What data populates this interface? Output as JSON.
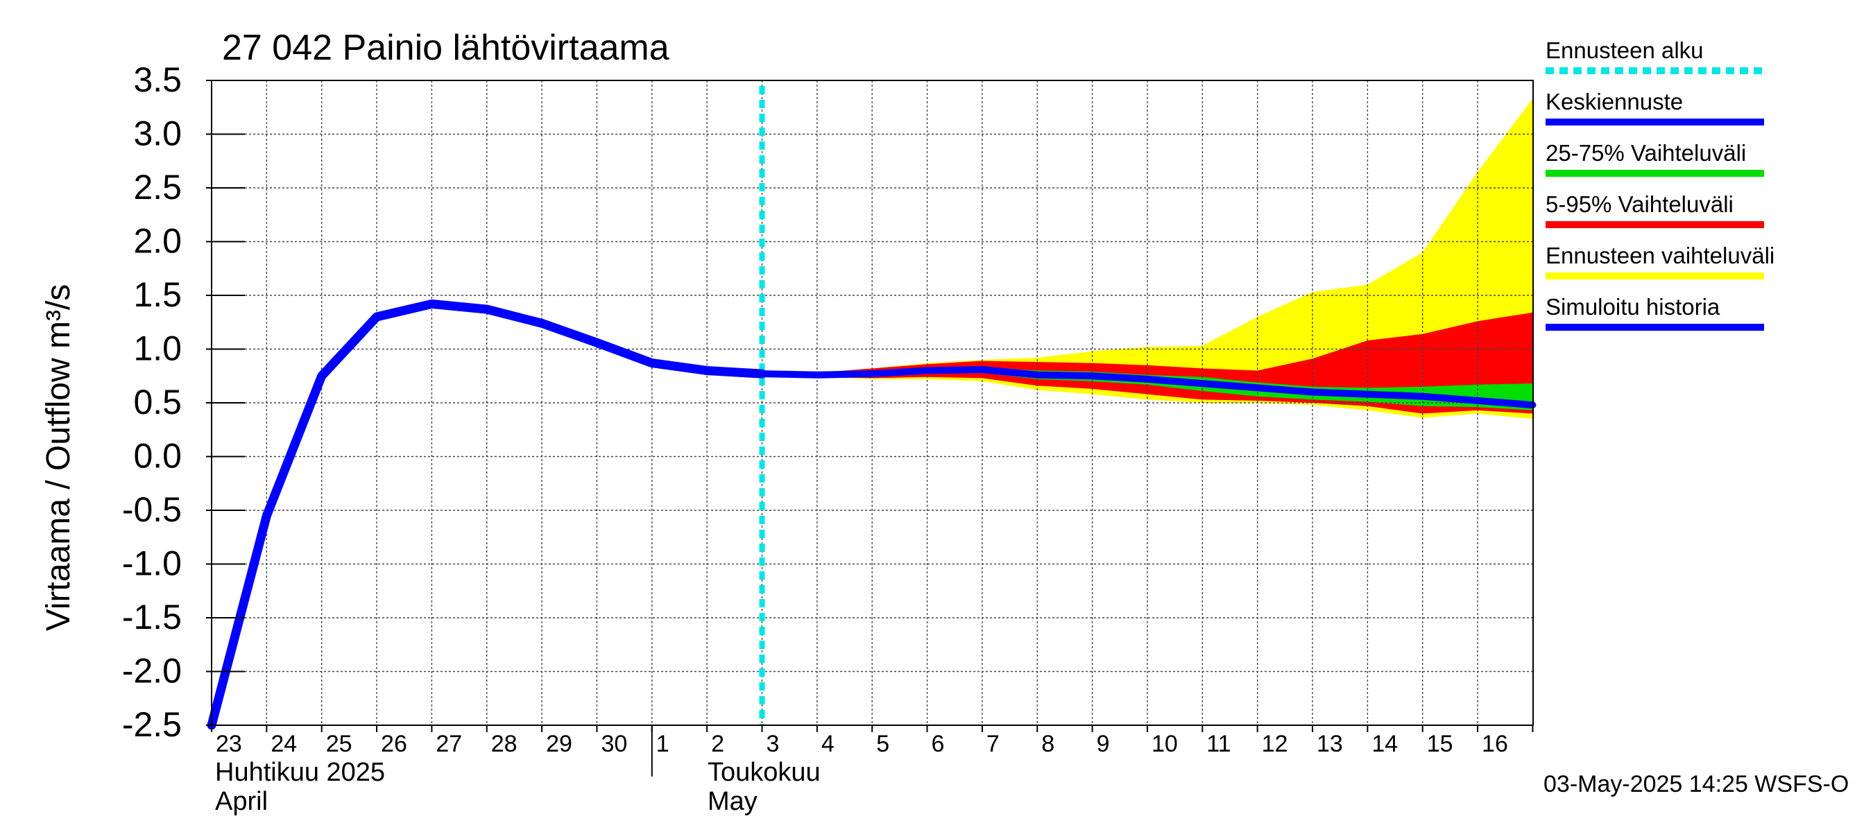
{
  "chart_data": {
    "type": "area",
    "title": "27 042 Painio lähtövirtaama",
    "ylabel": "Virtaama / Outflow    m³/s",
    "ylim": [
      -2.5,
      3.5
    ],
    "yticks": [
      "3.5",
      "3.0",
      "2.5",
      "2.0",
      "1.5",
      "1.0",
      "0.5",
      "0.0",
      "-0.5",
      "-1.0",
      "-1.5",
      "-2.0",
      "-2.5"
    ],
    "x_days": [
      "23",
      "24",
      "25",
      "26",
      "27",
      "28",
      "29",
      "30",
      "1",
      "2",
      "3",
      "4",
      "5",
      "6",
      "7",
      "8",
      "9",
      "10",
      "11",
      "12",
      "13",
      "14",
      "15",
      "16"
    ],
    "x_month_labels": [
      {
        "line1": "Huhtikuu  2025",
        "line2": "April"
      },
      {
        "line1": "Toukokuu",
        "line2": "May"
      }
    ],
    "forecast_start": "2025-05-03",
    "grid": true,
    "legend_position": "right",
    "legend": [
      {
        "label": "Ennusteen alku",
        "color": "#00e5e5",
        "style": "dashed"
      },
      {
        "label": "Keskiennuste",
        "color": "#0000ff",
        "style": "solid"
      },
      {
        "label": "25-75% Vaihteluväli",
        "color": "#00dd00",
        "style": "solid"
      },
      {
        "label": "5-95% Vaihteluväli",
        "color": "#ff0000",
        "style": "solid"
      },
      {
        "label": "Ennusteen vaihteluväli",
        "color": "#ffff00",
        "style": "solid"
      },
      {
        "label": "Simuloitu historia",
        "color": "#0000ff",
        "style": "solid"
      }
    ],
    "series": [
      {
        "name": "Simuloitu historia",
        "x": [
          "2025-04-23",
          "2025-04-24",
          "2025-04-25",
          "2025-04-26",
          "2025-04-27",
          "2025-04-28",
          "2025-04-29",
          "2025-04-30",
          "2025-05-01",
          "2025-05-02",
          "2025-05-03"
        ],
        "values": [
          -2.5,
          -0.55,
          0.75,
          1.3,
          1.42,
          1.37,
          1.24,
          1.06,
          0.87,
          0.8,
          0.77
        ]
      },
      {
        "name": "Keskiennuste",
        "x": [
          "2025-05-03",
          "2025-05-04",
          "2025-05-05",
          "2025-05-06",
          "2025-05-07",
          "2025-05-08",
          "2025-05-09",
          "2025-05-10",
          "2025-05-11",
          "2025-05-12",
          "2025-05-13",
          "2025-05-14",
          "2025-05-15",
          "2025-05-16",
          "2025-05-17"
        ],
        "values": [
          0.77,
          0.76,
          0.77,
          0.8,
          0.81,
          0.76,
          0.75,
          0.72,
          0.68,
          0.64,
          0.6,
          0.58,
          0.56,
          0.52,
          0.48
        ]
      },
      {
        "name": "Ennusteen vaihteluväli",
        "x": [
          "2025-05-03",
          "2025-05-04",
          "2025-05-05",
          "2025-05-06",
          "2025-05-07",
          "2025-05-08",
          "2025-05-09",
          "2025-05-10",
          "2025-05-11",
          "2025-05-12",
          "2025-05-13",
          "2025-05-14",
          "2025-05-15",
          "2025-05-16",
          "2025-05-17"
        ],
        "upper": [
          0.77,
          0.78,
          0.82,
          0.87,
          0.9,
          0.92,
          0.98,
          1.02,
          1.03,
          1.3,
          1.53,
          1.6,
          1.9,
          2.65,
          3.33
        ],
        "lower": [
          0.77,
          0.74,
          0.72,
          0.72,
          0.7,
          0.62,
          0.58,
          0.53,
          0.5,
          0.5,
          0.48,
          0.43,
          0.36,
          0.4,
          0.35
        ]
      },
      {
        "name": "5-95% Vaihteluväli",
        "x": [
          "2025-05-03",
          "2025-05-04",
          "2025-05-05",
          "2025-05-06",
          "2025-05-07",
          "2025-05-08",
          "2025-05-09",
          "2025-05-10",
          "2025-05-11",
          "2025-05-12",
          "2025-05-13",
          "2025-05-14",
          "2025-05-15",
          "2025-05-16",
          "2025-05-17"
        ],
        "upper": [
          0.77,
          0.78,
          0.82,
          0.86,
          0.89,
          0.88,
          0.87,
          0.85,
          0.82,
          0.8,
          0.91,
          1.08,
          1.14,
          1.26,
          1.34
        ],
        "lower": [
          0.77,
          0.74,
          0.73,
          0.74,
          0.73,
          0.66,
          0.63,
          0.58,
          0.53,
          0.52,
          0.5,
          0.47,
          0.4,
          0.43,
          0.4
        ]
      },
      {
        "name": "25-75% Vaihteluväli",
        "x": [
          "2025-05-03",
          "2025-05-04",
          "2025-05-05",
          "2025-05-06",
          "2025-05-07",
          "2025-05-08",
          "2025-05-09",
          "2025-05-10",
          "2025-05-11",
          "2025-05-12",
          "2025-05-13",
          "2025-05-14",
          "2025-05-15",
          "2025-05-16",
          "2025-05-17"
        ],
        "upper": [
          0.77,
          0.77,
          0.78,
          0.82,
          0.83,
          0.8,
          0.79,
          0.76,
          0.74,
          0.69,
          0.65,
          0.64,
          0.65,
          0.67,
          0.68
        ],
        "lower": [
          0.77,
          0.75,
          0.76,
          0.78,
          0.78,
          0.72,
          0.7,
          0.67,
          0.61,
          0.56,
          0.53,
          0.51,
          0.47,
          0.46,
          0.43
        ]
      }
    ]
  },
  "footer": {
    "timestamp": "03-May-2025 14:25 WSFS-O"
  }
}
